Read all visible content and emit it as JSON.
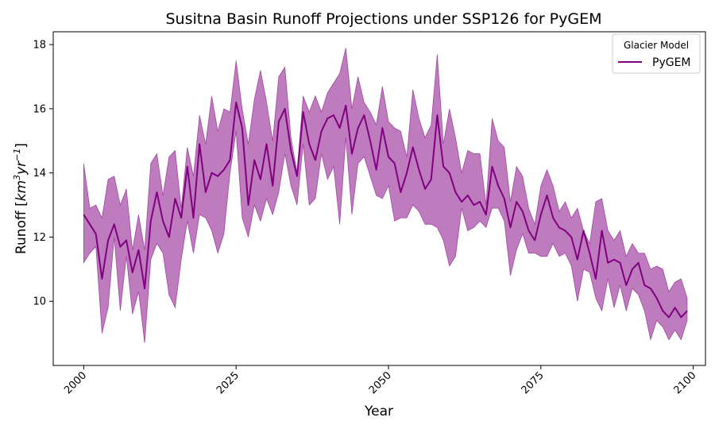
{
  "chart_data": {
    "type": "line",
    "title": "Susitna Basin Runoff Projections under SSP126 for PyGEM",
    "xlabel": "Year",
    "ylabel": "Runoff [km3yr−1]",
    "ylabel_parts": {
      "prefix": "Runoff [",
      "base": "km",
      "exp1": "3",
      "mid": "yr",
      "exp2": "−1",
      "suffix": "]"
    },
    "xlim": [
      1995,
      2102
    ],
    "ylim": [
      8.0,
      18.4
    ],
    "xticks": [
      2000,
      2025,
      2050,
      2075,
      2100
    ],
    "yticks": [
      10,
      12,
      14,
      16,
      18
    ],
    "grid": false,
    "legend": {
      "title": "Glacier Model",
      "placement": "top-right",
      "entries": [
        "PyGEM"
      ]
    },
    "series": [
      {
        "name": "PyGEM",
        "color": "#800080",
        "band_color": "#BE7CBE",
        "x": [
          2000,
          2001,
          2002,
          2003,
          2004,
          2005,
          2006,
          2007,
          2008,
          2009,
          2010,
          2011,
          2012,
          2013,
          2014,
          2015,
          2016,
          2017,
          2018,
          2019,
          2020,
          2021,
          2022,
          2023,
          2024,
          2025,
          2026,
          2027,
          2028,
          2029,
          2030,
          2031,
          2032,
          2033,
          2034,
          2035,
          2036,
          2037,
          2038,
          2039,
          2040,
          2041,
          2042,
          2043,
          2044,
          2045,
          2046,
          2047,
          2048,
          2049,
          2050,
          2051,
          2052,
          2053,
          2054,
          2055,
          2056,
          2057,
          2058,
          2059,
          2060,
          2061,
          2062,
          2063,
          2064,
          2065,
          2066,
          2067,
          2068,
          2069,
          2070,
          2071,
          2072,
          2073,
          2074,
          2075,
          2076,
          2077,
          2078,
          2079,
          2080,
          2081,
          2082,
          2083,
          2084,
          2085,
          2086,
          2087,
          2088,
          2089,
          2090,
          2091,
          2092,
          2093,
          2094,
          2095,
          2096,
          2097,
          2098,
          2099
        ],
        "mean": [
          12.7,
          12.4,
          12.1,
          10.7,
          11.9,
          12.4,
          11.7,
          11.9,
          10.9,
          11.6,
          10.4,
          12.5,
          13.4,
          12.5,
          12.0,
          13.2,
          12.6,
          14.2,
          12.6,
          14.9,
          13.4,
          14.0,
          13.9,
          14.1,
          14.4,
          16.2,
          15.4,
          13.0,
          14.4,
          13.8,
          14.9,
          13.6,
          15.6,
          16.0,
          14.7,
          13.9,
          15.9,
          14.9,
          14.4,
          15.3,
          15.7,
          15.8,
          15.4,
          16.1,
          14.6,
          15.4,
          15.8,
          15.0,
          14.1,
          15.4,
          14.5,
          14.3,
          13.4,
          14.0,
          14.8,
          14.1,
          13.5,
          13.8,
          15.8,
          14.2,
          14.0,
          13.4,
          13.1,
          13.3,
          13.0,
          13.1,
          12.7,
          14.2,
          13.6,
          13.2,
          12.3,
          13.1,
          12.8,
          12.2,
          11.9,
          12.7,
          13.3,
          12.6,
          12.3,
          12.2,
          12.0,
          11.3,
          12.2,
          11.5,
          10.7,
          12.2,
          11.2,
          11.3,
          11.2,
          10.5,
          11.0,
          11.2,
          10.5,
          10.4,
          10.1,
          9.7,
          9.5,
          9.8,
          9.5,
          9.7
        ],
        "upper": [
          14.3,
          12.9,
          13.0,
          12.6,
          13.8,
          13.9,
          13.0,
          13.5,
          11.6,
          12.7,
          11.6,
          14.3,
          14.6,
          13.3,
          14.5,
          14.7,
          12.9,
          14.8,
          13.9,
          15.8,
          14.9,
          16.4,
          15.3,
          16.0,
          15.9,
          17.5,
          16.0,
          14.9,
          16.3,
          17.2,
          16.2,
          15.0,
          17.0,
          17.3,
          15.1,
          14.0,
          16.4,
          15.9,
          16.4,
          15.9,
          16.5,
          16.8,
          17.1,
          17.9,
          16.0,
          17.0,
          16.2,
          15.9,
          15.5,
          16.7,
          15.6,
          15.4,
          15.3,
          14.5,
          16.6,
          15.7,
          15.1,
          15.5,
          17.7,
          14.9,
          16.0,
          15.1,
          14.0,
          14.7,
          14.6,
          14.6,
          13.0,
          15.7,
          15.0,
          14.8,
          13.1,
          14.2,
          13.9,
          12.9,
          12.4,
          13.6,
          14.1,
          13.6,
          12.8,
          13.1,
          12.6,
          12.9,
          12.2,
          11.8,
          13.1,
          13.2,
          12.2,
          11.9,
          12.2,
          11.4,
          11.8,
          11.5,
          11.5,
          11.0,
          11.1,
          11.0,
          10.3,
          10.6,
          10.7,
          10.1
        ],
        "lower": [
          11.2,
          11.5,
          11.7,
          9.0,
          9.8,
          12.0,
          9.7,
          11.4,
          9.6,
          10.3,
          8.7,
          11.3,
          11.8,
          11.5,
          10.2,
          9.8,
          11.3,
          12.5,
          11.5,
          12.7,
          12.6,
          12.2,
          11.5,
          12.1,
          14.0,
          15.3,
          12.6,
          12.0,
          13.0,
          12.5,
          13.2,
          12.7,
          13.4,
          14.6,
          13.6,
          13.0,
          14.9,
          13.0,
          13.2,
          14.6,
          13.8,
          14.2,
          12.4,
          15.1,
          12.7,
          14.3,
          14.5,
          13.9,
          13.3,
          13.2,
          13.6,
          12.5,
          12.6,
          12.6,
          13.0,
          12.8,
          12.4,
          12.4,
          12.3,
          11.9,
          11.1,
          11.4,
          12.9,
          12.2,
          12.3,
          12.5,
          12.3,
          12.9,
          12.9,
          12.5,
          10.8,
          11.6,
          12.1,
          11.5,
          11.5,
          11.4,
          11.4,
          11.8,
          11.4,
          11.5,
          11.1,
          10.0,
          11.0,
          10.9,
          10.1,
          9.7,
          10.7,
          9.8,
          10.5,
          9.7,
          10.4,
          10.2,
          9.7,
          8.8,
          9.4,
          9.2,
          8.8,
          9.1,
          8.8,
          9.4
        ]
      }
    ]
  }
}
